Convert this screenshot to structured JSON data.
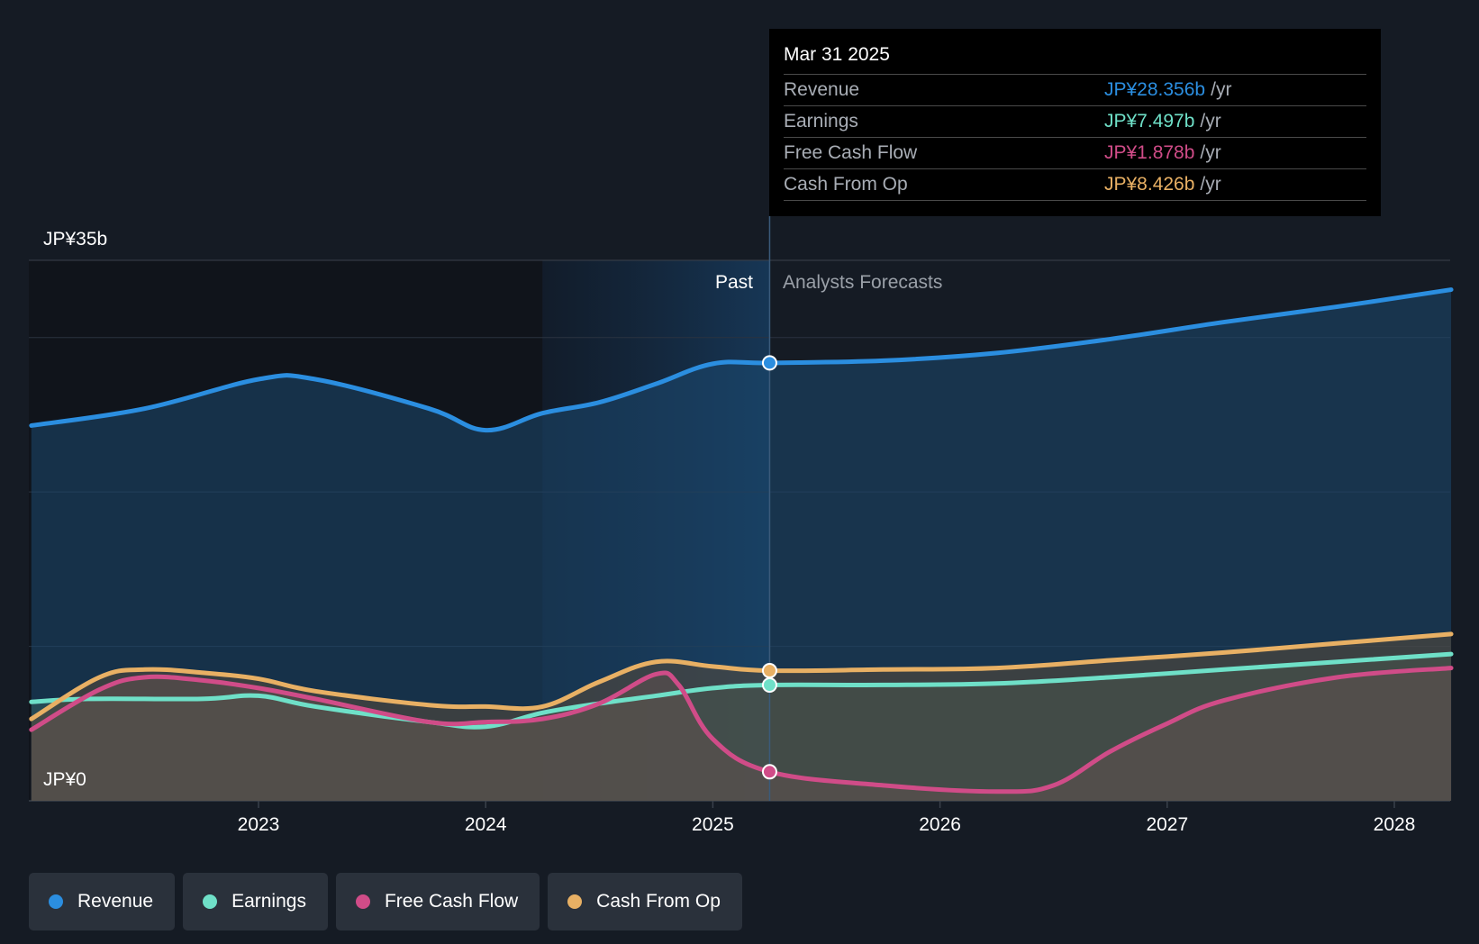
{
  "chart_data": {
    "type": "area",
    "y_axis": {
      "top_label": "JP¥35b",
      "bottom_label": "JP¥0",
      "ylim": [
        0,
        35
      ]
    },
    "x_axis": {
      "ticks": [
        {
          "label": "2023",
          "value": 2023.0
        },
        {
          "label": "2024",
          "value": 2024.0
        },
        {
          "label": "2025",
          "value": 2025.0
        },
        {
          "label": "2026",
          "value": 2026.0
        },
        {
          "label": "2027",
          "value": 2027.0
        },
        {
          "label": "2028",
          "value": 2028.0
        }
      ],
      "xlim": [
        2021.75,
        2028.25
      ]
    },
    "past_label": "Past",
    "forecast_label": "Analysts Forecasts",
    "past_start": 2022.0,
    "highlight_start": 2024.25,
    "divider": 2025.25,
    "series": [
      {
        "name": "Revenue",
        "color": "#2b8ee0",
        "points": [
          [
            2022.0,
            24.3
          ],
          [
            2022.5,
            25.4
          ],
          [
            2023.0,
            27.3
          ],
          [
            2023.25,
            27.3
          ],
          [
            2023.75,
            25.4
          ],
          [
            2024.0,
            24.0
          ],
          [
            2024.25,
            25.1
          ],
          [
            2024.5,
            25.8
          ],
          [
            2024.75,
            27.0
          ],
          [
            2025.0,
            28.3
          ],
          [
            2025.25,
            28.356
          ],
          [
            2025.75,
            28.5
          ],
          [
            2026.25,
            29.0
          ],
          [
            2026.75,
            29.9
          ],
          [
            2027.25,
            31.0
          ],
          [
            2027.75,
            32.0
          ],
          [
            2028.25,
            33.1
          ]
        ]
      },
      {
        "name": "Earnings",
        "color": "#6fe0c8",
        "points": [
          [
            2022.0,
            6.4
          ],
          [
            2022.25,
            6.6
          ],
          [
            2022.75,
            6.6
          ],
          [
            2023.0,
            6.8
          ],
          [
            2023.25,
            6.1
          ],
          [
            2023.75,
            5.1
          ],
          [
            2024.0,
            4.8
          ],
          [
            2024.25,
            5.7
          ],
          [
            2024.5,
            6.3
          ],
          [
            2024.75,
            6.8
          ],
          [
            2025.0,
            7.3
          ],
          [
            2025.25,
            7.497
          ],
          [
            2025.75,
            7.5
          ],
          [
            2026.25,
            7.6
          ],
          [
            2026.75,
            8.0
          ],
          [
            2027.25,
            8.5
          ],
          [
            2027.75,
            9.0
          ],
          [
            2028.25,
            9.5
          ]
        ]
      },
      {
        "name": "Free Cash Flow",
        "color": "#d04c88",
        "points": [
          [
            2022.0,
            4.6
          ],
          [
            2022.3,
            7.2
          ],
          [
            2022.5,
            8.0
          ],
          [
            2022.75,
            7.8
          ],
          [
            2023.0,
            7.3
          ],
          [
            2023.25,
            6.6
          ],
          [
            2023.75,
            5.1
          ],
          [
            2024.0,
            5.1
          ],
          [
            2024.25,
            5.3
          ],
          [
            2024.5,
            6.3
          ],
          [
            2024.75,
            8.2
          ],
          [
            2024.85,
            7.5
          ],
          [
            2025.0,
            4.0
          ],
          [
            2025.25,
            1.878
          ],
          [
            2025.75,
            1.0
          ],
          [
            2026.25,
            0.6
          ],
          [
            2026.5,
            1.0
          ],
          [
            2026.75,
            3.2
          ],
          [
            2027.0,
            5.0
          ],
          [
            2027.25,
            6.5
          ],
          [
            2027.75,
            8.0
          ],
          [
            2028.25,
            8.6
          ]
        ]
      },
      {
        "name": "Cash From Op",
        "color": "#e8b064",
        "points": [
          [
            2022.0,
            5.3
          ],
          [
            2022.3,
            8.0
          ],
          [
            2022.5,
            8.5
          ],
          [
            2022.75,
            8.3
          ],
          [
            2023.0,
            7.9
          ],
          [
            2023.25,
            7.1
          ],
          [
            2023.75,
            6.2
          ],
          [
            2024.0,
            6.1
          ],
          [
            2024.25,
            6.1
          ],
          [
            2024.5,
            7.7
          ],
          [
            2024.75,
            9.0
          ],
          [
            2025.0,
            8.7
          ],
          [
            2025.25,
            8.426
          ],
          [
            2025.75,
            8.5
          ],
          [
            2026.25,
            8.6
          ],
          [
            2026.75,
            9.1
          ],
          [
            2027.25,
            9.6
          ],
          [
            2027.75,
            10.2
          ],
          [
            2028.25,
            10.8
          ]
        ]
      }
    ]
  },
  "tooltip": {
    "date": "Mar 31 2025",
    "unit": "/yr",
    "rows": [
      {
        "label": "Revenue",
        "value": "JP¥28.356b",
        "color": "#2b8ee0"
      },
      {
        "label": "Earnings",
        "value": "JP¥7.497b",
        "color": "#6fe0c8"
      },
      {
        "label": "Free Cash Flow",
        "value": "JP¥1.878b",
        "color": "#d04c88"
      },
      {
        "label": "Cash From Op",
        "value": "JP¥8.426b",
        "color": "#e8b064"
      }
    ]
  },
  "legend": [
    {
      "label": "Revenue",
      "color": "#2b8ee0"
    },
    {
      "label": "Earnings",
      "color": "#6fe0c8"
    },
    {
      "label": "Free Cash Flow",
      "color": "#d04c88"
    },
    {
      "label": "Cash From Op",
      "color": "#e8b064"
    }
  ]
}
